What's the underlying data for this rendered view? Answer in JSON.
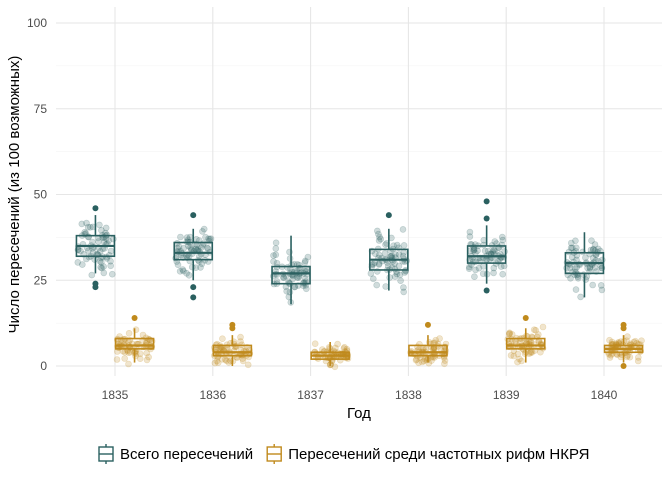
{
  "chart_data": {
    "type": "boxplot-jitter",
    "xlabel": "Год",
    "ylabel": "Число пересечений (из 100 возможных)",
    "ylim": [
      0,
      100
    ],
    "yticks": [
      0,
      25,
      50,
      75,
      100
    ],
    "categories": [
      "1835",
      "1836",
      "1837",
      "1838",
      "1839",
      "1840"
    ],
    "grid": true,
    "legend_position": "bottom",
    "series": [
      {
        "name": "Всего пересечений",
        "color": "#2a6060",
        "offset": -0.2,
        "boxes": [
          {
            "q1": 32,
            "median": 35,
            "q3": 38,
            "whisker_low": 27,
            "whisker_high": 44,
            "outliers": [
              46,
              23,
              24
            ]
          },
          {
            "q1": 31,
            "median": 33,
            "q3": 36,
            "whisker_low": 25,
            "whisker_high": 40,
            "outliers": [
              44,
              23,
              20
            ]
          },
          {
            "q1": 24,
            "median": 27,
            "q3": 29,
            "whisker_low": 18,
            "whisker_high": 38,
            "outliers": []
          },
          {
            "q1": 28,
            "median": 31,
            "q3": 34,
            "whisker_low": 22,
            "whisker_high": 40,
            "outliers": [
              44
            ]
          },
          {
            "q1": 30,
            "median": 32,
            "q3": 35,
            "whisker_low": 24,
            "whisker_high": 41,
            "outliers": [
              48,
              43,
              22
            ]
          },
          {
            "q1": 27,
            "median": 30,
            "q3": 33,
            "whisker_low": 20,
            "whisker_high": 39,
            "outliers": []
          }
        ]
      },
      {
        "name": "Пересечений среди частотных рифм НКРЯ",
        "color": "#c08a1c",
        "offset": 0.2,
        "boxes": [
          {
            "q1": 5,
            "median": 6,
            "q3": 8,
            "whisker_low": 1,
            "whisker_high": 11,
            "outliers": [
              14
            ]
          },
          {
            "q1": 3,
            "median": 4,
            "q3": 6,
            "whisker_low": 0,
            "whisker_high": 9,
            "outliers": [
              12,
              11
            ]
          },
          {
            "q1": 2,
            "median": 3,
            "q3": 4,
            "whisker_low": 0,
            "whisker_high": 7,
            "outliers": []
          },
          {
            "q1": 3,
            "median": 4,
            "q3": 6,
            "whisker_low": 1,
            "whisker_high": 9,
            "outliers": [
              12
            ]
          },
          {
            "q1": 5,
            "median": 6,
            "q3": 8,
            "whisker_low": 1,
            "whisker_high": 11,
            "outliers": [
              14
            ]
          },
          {
            "q1": 4,
            "median": 5,
            "q3": 6,
            "whisker_low": 1,
            "whisker_high": 9,
            "outliers": [
              12,
              11,
              0
            ]
          }
        ]
      }
    ]
  }
}
